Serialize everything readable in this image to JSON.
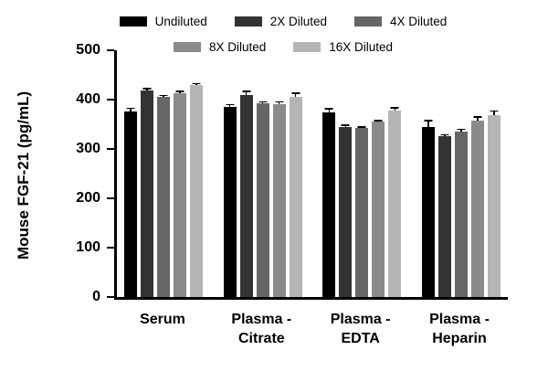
{
  "chart_data": {
    "type": "bar",
    "title": "",
    "xlabel": "",
    "ylabel": "Mouse FGF-21 (pg/mL)",
    "ylim": [
      0,
      500
    ],
    "yticks": [
      0,
      100,
      200,
      300,
      400,
      500
    ],
    "grid": false,
    "legend_position": "top",
    "categories": [
      "Serum",
      "Plasma -\nCitrate",
      "Plasma -\nEDTA",
      "Plasma -\nHeparin"
    ],
    "series": [
      {
        "name": "Undiluted",
        "color": "#000000",
        "values": [
          376,
          385,
          375,
          345
        ],
        "errors": [
          8,
          6,
          8,
          14
        ]
      },
      {
        "name": "2X Diluted",
        "color": "#333333",
        "values": [
          418,
          410,
          345,
          326
        ],
        "errors": [
          6,
          8,
          5,
          4
        ]
      },
      {
        "name": "4X Diluted",
        "color": "#666666",
        "values": [
          405,
          392,
          342,
          336
        ],
        "errors": [
          5,
          5,
          4,
          5
        ]
      },
      {
        "name": "8X Diluted",
        "color": "#8a8a8a",
        "values": [
          413,
          391,
          355,
          358
        ],
        "errors": [
          5,
          6,
          4,
          8
        ]
      },
      {
        "name": "16X Diluted",
        "color": "#b5b5b5",
        "values": [
          429,
          406,
          377,
          368
        ],
        "errors": [
          5,
          8,
          8,
          10
        ]
      }
    ]
  }
}
